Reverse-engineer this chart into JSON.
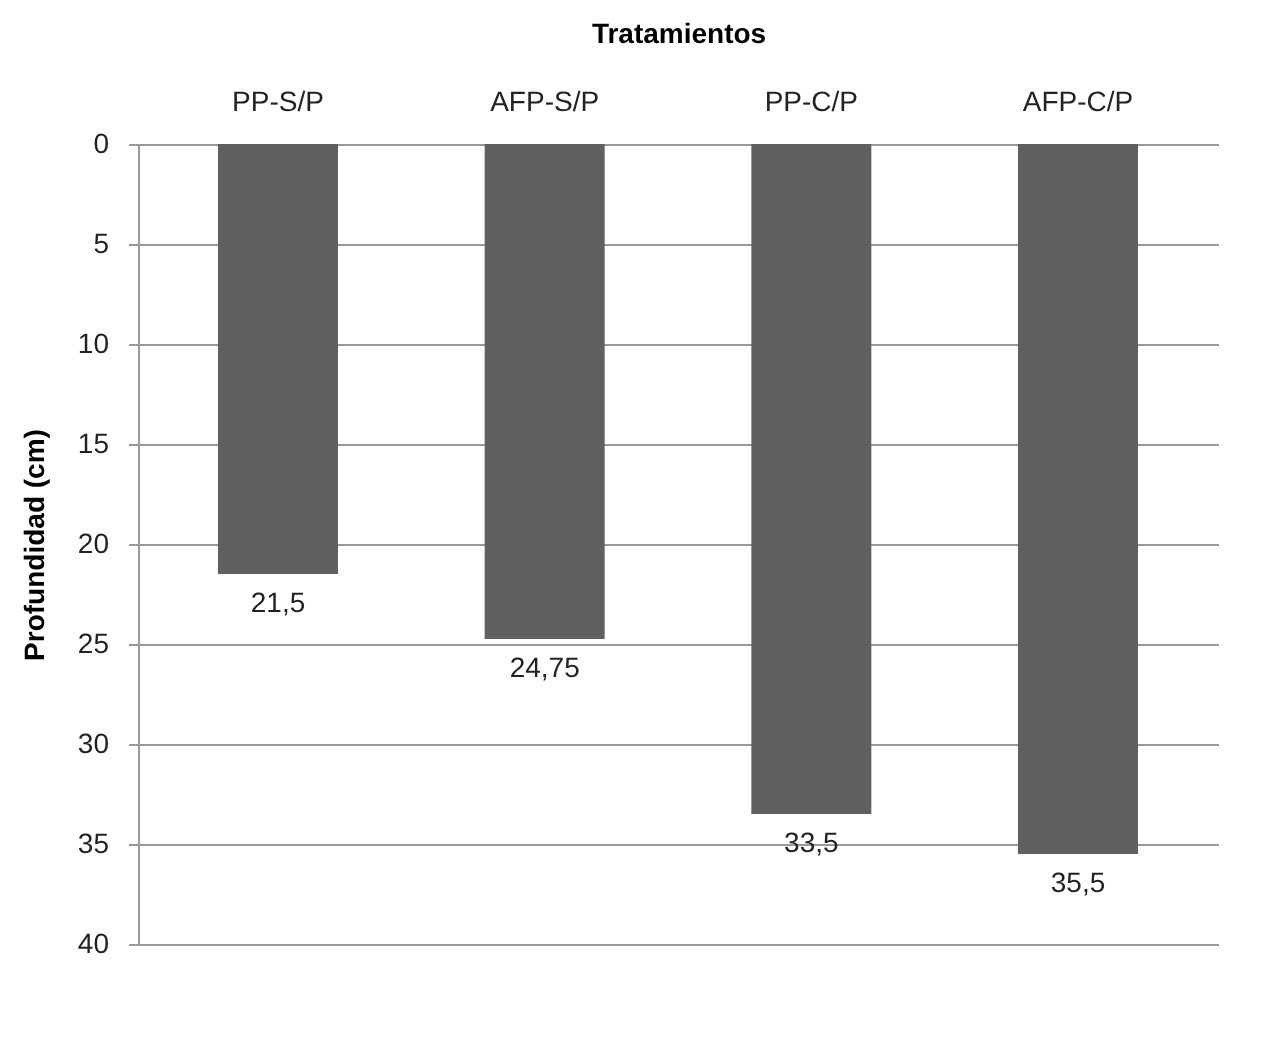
{
  "chart_data": {
    "type": "bar",
    "xlabel": "Tratamientos",
    "ylabel": "Profundidad (cm)",
    "categories": [
      "PP-S/P",
      "AFP-S/P",
      "PP-C/P",
      "AFP-C/P"
    ],
    "values": [
      21.5,
      24.75,
      33.5,
      35.5
    ],
    "color": "#606060",
    "value_labels": [
      "21,5",
      "24,75",
      "33,5",
      "35,5"
    ],
    "ylim": [
      40,
      0
    ],
    "yticks": [
      0,
      5,
      10,
      15,
      20,
      25,
      30,
      35,
      40
    ],
    "grid": "y"
  }
}
